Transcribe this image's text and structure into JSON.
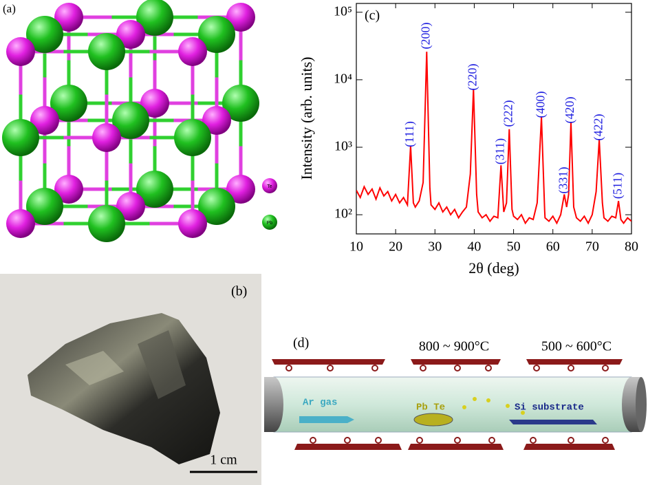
{
  "panel_a": {
    "label": "(a)",
    "legend": [
      "Te",
      "Pb"
    ]
  },
  "panel_b": {
    "label": "(b)",
    "scale_bar": "1 cm"
  },
  "panel_d": {
    "label": "(d)",
    "zone1": "800 ~ 900°C",
    "zone2": "500 ~ 600°C",
    "gas": "Ar gas",
    "source": "Pb Te",
    "substrate": "Si substrate"
  },
  "chart_data": {
    "type": "line",
    "panel_label": "(c)",
    "xlabel": "2θ (deg)",
    "ylabel": "Intensity (arb. units)",
    "color": "#ff0000",
    "log_y": true,
    "xlim": [
      10,
      80
    ],
    "xticks": [
      10,
      20,
      30,
      40,
      50,
      60,
      70,
      80
    ],
    "ylim": [
      52,
      135000
    ],
    "yticks": [
      {
        "value": 100,
        "label": "10²"
      },
      {
        "value": 1000,
        "label": "10³"
      },
      {
        "value": 10000,
        "label": "10⁴"
      },
      {
        "value": 100000,
        "label": "10⁵"
      }
    ],
    "x": [
      10,
      11,
      12,
      13,
      14,
      15,
      16,
      17,
      18,
      19,
      20,
      21,
      22,
      23,
      23.8,
      24.5,
      25,
      26,
      27,
      27.9,
      28.7,
      29,
      30,
      31,
      32,
      33,
      34,
      35,
      36,
      37,
      38,
      39,
      39.8,
      40.6,
      41,
      42,
      43,
      44,
      45,
      46,
      46.8,
      47.5,
      48.2,
      48.9,
      49.6,
      50,
      51,
      52,
      53,
      54,
      55,
      56,
      57.1,
      57.9,
      58,
      59,
      60,
      61,
      62,
      62.9,
      63.5,
      64,
      64.6,
      65.3,
      66,
      67,
      68,
      69,
      70,
      71,
      71.8,
      72.6,
      73,
      74,
      75,
      76,
      76.7,
      77.3,
      78,
      79,
      80
    ],
    "values": [
      230,
      180,
      260,
      200,
      240,
      170,
      250,
      190,
      220,
      160,
      200,
      150,
      180,
      140,
      1050,
      150,
      130,
      160,
      300,
      26000,
      250,
      140,
      120,
      150,
      110,
      130,
      100,
      120,
      90,
      110,
      130,
      400,
      7300,
      200,
      110,
      90,
      100,
      80,
      95,
      90,
      540,
      110,
      150,
      1850,
      120,
      95,
      85,
      100,
      75,
      90,
      85,
      150,
      2800,
      120,
      90,
      80,
      95,
      75,
      100,
      200,
      130,
      200,
      2350,
      130,
      90,
      80,
      95,
      75,
      100,
      220,
      1300,
      150,
      90,
      80,
      95,
      90,
      160,
      85,
      75,
      90,
      80
    ],
    "peaks": [
      {
        "label": "(111)",
        "x": 23.8
      },
      {
        "label": "(200)",
        "x": 27.9
      },
      {
        "label": "(220)",
        "x": 39.8
      },
      {
        "label": "(311)",
        "x": 46.8
      },
      {
        "label": "(222)",
        "x": 48.9
      },
      {
        "label": "(400)",
        "x": 57.1
      },
      {
        "label": "(331)",
        "x": 62.9
      },
      {
        "label": "(420)",
        "x": 64.6
      },
      {
        "label": "(422)",
        "x": 71.8
      },
      {
        "label": "(511)",
        "x": 76.7
      }
    ]
  }
}
